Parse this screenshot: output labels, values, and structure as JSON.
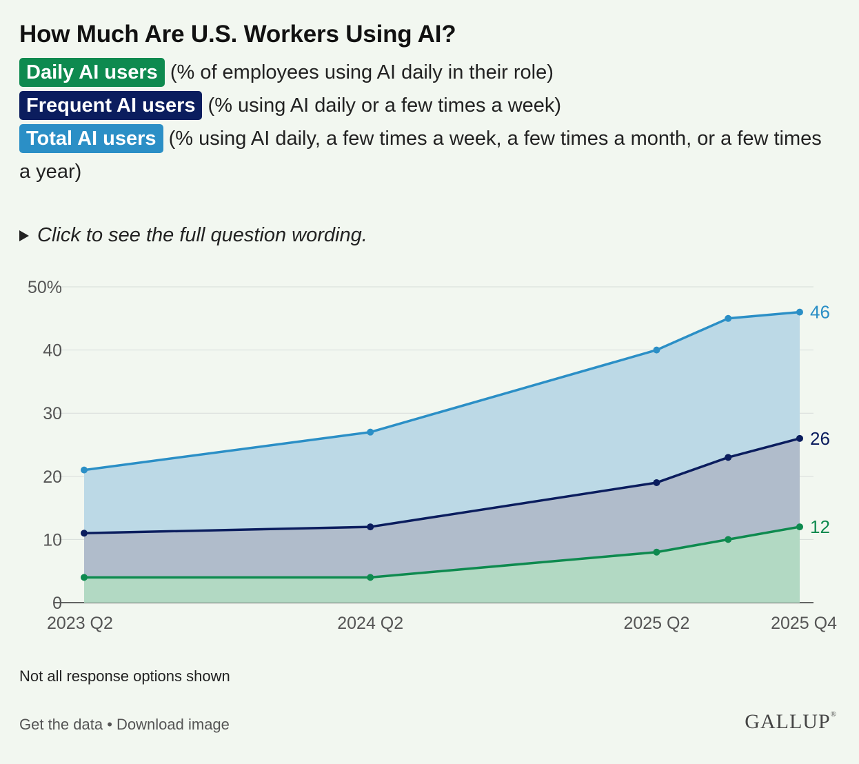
{
  "header": {
    "title": "How Much Are U.S. Workers Using AI?"
  },
  "legend": {
    "daily_label": "Daily AI users",
    "daily_desc": "(% of employees using AI daily in their role)",
    "frequent_label": "Frequent AI users",
    "frequent_desc": "(% using AI daily or a few times a week)",
    "total_label": "Total AI users",
    "total_desc": "(% using AI daily, a few times a week, a few times a month, or a few times a year)"
  },
  "toggle": {
    "label": "Click to see the full question wording."
  },
  "footer": {
    "note": "Not all response options shown",
    "get_data": "Get the data",
    "separator": " • ",
    "download": "Download image",
    "brand": "GALLUP",
    "brand_mark": "®"
  },
  "colors": {
    "daily": "#0e8a4f",
    "frequent": "#0b1d5e",
    "total": "#2b8fc6",
    "total_fill": "#bcd9e6",
    "frequent_fill": "#b0bccb",
    "daily_fill": "#b2d9c3",
    "grid": "#d7dcd9",
    "axis_text": "#555555"
  },
  "chart_data": {
    "type": "area",
    "title": "How Much Are U.S. Workers Using AI?",
    "x": [
      0,
      4,
      8,
      9,
      10
    ],
    "x_tick_positions": [
      0,
      4,
      8,
      10
    ],
    "x_tick_labels": [
      "2023 Q2",
      "2024 Q2",
      "2025 Q2",
      "2025 Q4"
    ],
    "y_ticks": [
      0,
      10,
      20,
      30,
      40,
      50
    ],
    "y_tick_labels": [
      "0",
      "10",
      "20",
      "30",
      "40",
      "50%"
    ],
    "ylim": [
      0,
      50
    ],
    "series": [
      {
        "name": "Total AI users",
        "key": "total",
        "values": [
          21,
          27,
          40,
          45,
          46
        ],
        "end_label": "46"
      },
      {
        "name": "Frequent AI users",
        "key": "frequent",
        "values": [
          11,
          12,
          19,
          23,
          26
        ],
        "end_label": "26"
      },
      {
        "name": "Daily AI users",
        "key": "daily",
        "values": [
          4,
          4,
          8,
          10,
          12
        ],
        "end_label": "12"
      }
    ]
  }
}
